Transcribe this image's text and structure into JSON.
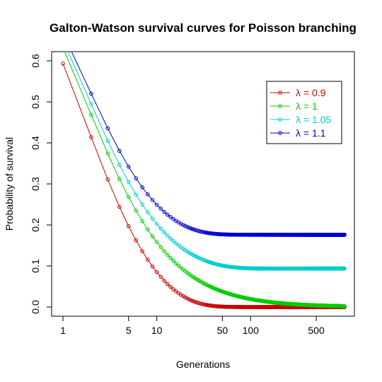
{
  "chart_data": {
    "type": "line",
    "title": "Galton-Watson survival curves for Poisson branching",
    "xlabel": "Generations",
    "ylabel": "Probability of survival",
    "xscale": "log",
    "xlim": [
      1,
      1000
    ],
    "ylim": [
      0,
      0.6
    ],
    "x_ticks": [
      1,
      5,
      10,
      50,
      100,
      500
    ],
    "y_ticks": [
      0.0,
      0.1,
      0.2,
      0.3,
      0.4,
      0.5,
      0.6
    ],
    "x_tick_labels": [
      "1",
      "5",
      "10",
      "50",
      "100",
      "500"
    ],
    "y_tick_labels": [
      "0.0",
      "0.1",
      "0.2",
      "0.3",
      "0.4",
      "0.5",
      "0.6"
    ],
    "grid": false,
    "legend_position": "top-right",
    "marker": "open-circle",
    "series": [
      {
        "name": "λ = 0.9",
        "lambda": 0.9,
        "color": "#CD0000"
      },
      {
        "name": "λ = 1",
        "lambda": 1.0,
        "color": "#00CD00"
      },
      {
        "name": "λ = 1.05",
        "lambda": 1.05,
        "color": "#00CDCD"
      },
      {
        "name": "λ = 1.1",
        "lambda": 1.1,
        "color": "#0000CD"
      }
    ]
  }
}
